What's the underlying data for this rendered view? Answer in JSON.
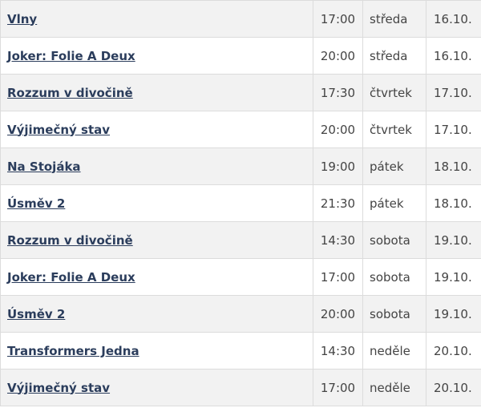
{
  "table": {
    "rows": [
      [
        "Vlny",
        "17:00",
        "středa",
        "16.10."
      ],
      [
        "Joker: Folie A Deux",
        "20:00",
        "středa",
        "16.10."
      ],
      [
        "Rozzum v divočině",
        "17:30",
        "čtvrtek",
        "17.10."
      ],
      [
        "Výjimečný stav",
        "20:00",
        "čtvrtek",
        "17.10."
      ],
      [
        "Na Stojáka",
        "19:00",
        "pátek",
        "18.10."
      ],
      [
        "Úsměv 2",
        "21:30",
        "pátek",
        "18.10."
      ],
      [
        "Rozzum v divočině",
        "14:30",
        "sobota",
        "19.10."
      ],
      [
        "Joker: Folie A Deux",
        "17:00",
        "sobota",
        "19.10."
      ],
      [
        "Úsměv 2",
        "20:00",
        "sobota",
        "19.10."
      ],
      [
        "Transformers Jedna",
        "14:30",
        "neděle",
        "20.10."
      ],
      [
        "Výjimečný stav",
        "17:00",
        "neděle",
        "20.10."
      ]
    ]
  }
}
